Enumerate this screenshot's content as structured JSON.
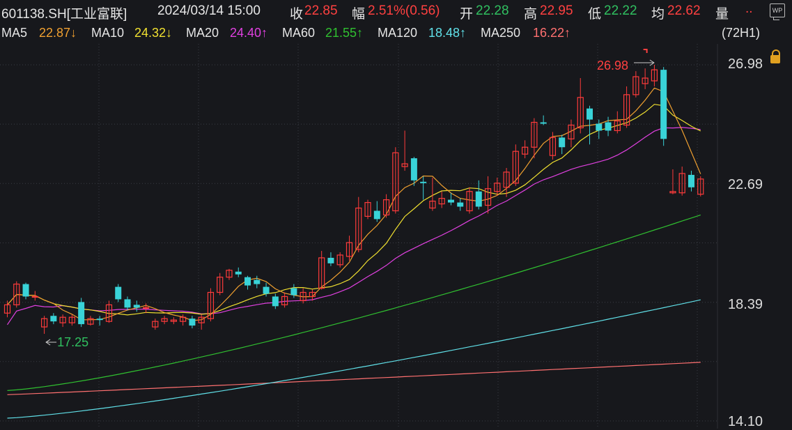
{
  "header": {
    "code": "601138.SH[工业富联]",
    "datetime": "2024/03/14 15:00",
    "close_label": "收",
    "close_value": "22.85",
    "change_label": "幅",
    "change_value": "2.51%(0.56)",
    "open_label": "开",
    "open_value": "22.28",
    "high_label": "高",
    "high_value": "22.95",
    "low_label": "低",
    "low_value": "22.22",
    "avg_label": "均",
    "avg_value": "22.62",
    "volume_label": "量",
    "more_label": "..",
    "wp_label": "WP"
  },
  "ma_bar": {
    "items": [
      {
        "label": "MA5",
        "value": "22.87↓",
        "color": "#f0a030"
      },
      {
        "label": "MA10",
        "value": "24.32↓",
        "color": "#f0e030"
      },
      {
        "label": "MA20",
        "value": "24.40↑",
        "color": "#e040e0"
      },
      {
        "label": "MA60",
        "value": "21.55↑",
        "color": "#30c030"
      },
      {
        "label": "MA120",
        "value": "18.48↑",
        "color": "#60e0e8"
      },
      {
        "label": "MA250",
        "value": "16.22↑",
        "color": "#ff7070"
      }
    ],
    "period": "(72H1)"
  },
  "chart_data": {
    "type": "candlestick",
    "y_ticks": [
      "26.98",
      "22.69",
      "18.39",
      "14.10"
    ],
    "ylim": [
      14.1,
      26.98
    ],
    "annotations": {
      "high": "26.98",
      "low": "17.25"
    },
    "colors": {
      "up": "#ff3b3b",
      "down": "#39d3d8",
      "ma5": "#f0a030",
      "ma10": "#f0e030",
      "ma20": "#e040e0",
      "ma60": "#30c030",
      "ma120": "#60e0e8",
      "ma250": "#ff7070"
    },
    "candles": [
      [
        18.0,
        18.3,
        18.45,
        17.85
      ],
      [
        18.3,
        19.05,
        19.15,
        18.2
      ],
      [
        19.05,
        18.6,
        19.1,
        18.5
      ],
      [
        18.6,
        18.6,
        18.8,
        18.45
      ],
      [
        17.5,
        17.8,
        17.9,
        17.25
      ],
      [
        17.9,
        17.7,
        18.0,
        17.6
      ],
      [
        17.65,
        17.85,
        17.95,
        17.5
      ],
      [
        17.65,
        17.85,
        17.95,
        17.55
      ],
      [
        18.4,
        17.6,
        18.55,
        17.5
      ],
      [
        17.6,
        17.8,
        17.9,
        17.55
      ],
      [
        17.8,
        17.75,
        17.9,
        17.55
      ],
      [
        17.7,
        18.3,
        18.45,
        17.65
      ],
      [
        18.95,
        18.5,
        19.05,
        18.4
      ],
      [
        18.5,
        18.2,
        18.6,
        18.1
      ],
      [
        18.3,
        18.2,
        18.45,
        18.05
      ],
      [
        18.2,
        18.2,
        18.35,
        18.0
      ],
      [
        17.5,
        17.7,
        17.8,
        17.4
      ],
      [
        17.7,
        17.8,
        17.9,
        17.6
      ],
      [
        17.7,
        17.75,
        17.85,
        17.6
      ],
      [
        17.7,
        17.85,
        17.95,
        17.55
      ],
      [
        17.8,
        17.55,
        17.9,
        17.45
      ],
      [
        17.65,
        17.85,
        17.95,
        17.4
      ],
      [
        17.8,
        18.75,
        18.9,
        17.7
      ],
      [
        18.75,
        19.3,
        19.45,
        18.65
      ],
      [
        19.3,
        19.55,
        19.6,
        19.2
      ],
      [
        19.5,
        19.4,
        19.65,
        19.3
      ],
      [
        19.3,
        19.0,
        19.35,
        18.85
      ],
      [
        19.2,
        19.05,
        19.35,
        18.9
      ],
      [
        18.95,
        18.7,
        19.1,
        18.6
      ],
      [
        18.6,
        18.25,
        18.7,
        18.15
      ],
      [
        18.3,
        18.6,
        18.75,
        18.2
      ],
      [
        18.9,
        18.65,
        19.05,
        18.55
      ],
      [
        18.45,
        18.75,
        18.9,
        18.35
      ],
      [
        18.6,
        18.75,
        18.85,
        18.45
      ],
      [
        18.9,
        20.0,
        20.25,
        18.85
      ],
      [
        20.0,
        19.8,
        20.2,
        19.7
      ],
      [
        19.75,
        20.1,
        20.2,
        19.65
      ],
      [
        20.05,
        20.55,
        20.8,
        19.9
      ],
      [
        20.3,
        21.8,
        22.2,
        20.2
      ],
      [
        21.5,
        22.0,
        22.1,
        21.4
      ],
      [
        21.7,
        21.4,
        22.05,
        21.3
      ],
      [
        21.55,
        22.1,
        22.3,
        21.45
      ],
      [
        21.7,
        23.8,
        24.0,
        21.6
      ],
      [
        23.3,
        23.4,
        24.6,
        23.15
      ],
      [
        23.6,
        22.8,
        23.65,
        22.6
      ],
      [
        22.75,
        22.7,
        22.95,
        22.1
      ],
      [
        21.8,
        22.05,
        22.9,
        21.7
      ],
      [
        21.95,
        22.15,
        22.4,
        21.8
      ],
      [
        22.1,
        22.0,
        22.35,
        21.9
      ],
      [
        22.0,
        21.85,
        22.15,
        21.7
      ],
      [
        21.7,
        22.4,
        22.55,
        21.6
      ],
      [
        22.4,
        21.85,
        22.8,
        21.75
      ],
      [
        21.9,
        22.5,
        22.95,
        21.6
      ],
      [
        22.4,
        22.7,
        22.9,
        22.25
      ],
      [
        22.55,
        23.1,
        23.25,
        22.2
      ],
      [
        22.7,
        23.85,
        24.1,
        22.6
      ],
      [
        23.75,
        24.0,
        24.25,
        23.6
      ],
      [
        24.0,
        24.9,
        25.05,
        23.6
      ],
      [
        24.9,
        24.85,
        25.15,
        24.8
      ],
      [
        23.7,
        24.35,
        24.55,
        23.55
      ],
      [
        24.35,
        24.0,
        24.45,
        23.75
      ],
      [
        24.3,
        24.8,
        25.0,
        24.0
      ],
      [
        24.7,
        25.8,
        26.5,
        24.5
      ],
      [
        25.4,
        25.0,
        25.5,
        24.1
      ],
      [
        24.85,
        24.6,
        25.0,
        24.3
      ],
      [
        24.9,
        24.6,
        25.1,
        24.4
      ],
      [
        24.6,
        24.95,
        25.3,
        24.5
      ],
      [
        24.8,
        25.9,
        26.2,
        24.7
      ],
      [
        25.9,
        26.55,
        26.75,
        25.8
      ],
      [
        26.3,
        26.5,
        26.85,
        26.1
      ],
      [
        26.4,
        26.8,
        26.98,
        26.2
      ],
      [
        26.8,
        24.3,
        26.9,
        24.05
      ],
      [
        22.35,
        22.4,
        23.2,
        22.3
      ],
      [
        22.35,
        23.05,
        23.3,
        22.25
      ],
      [
        23.0,
        22.55,
        23.15,
        22.4
      ],
      [
        22.3,
        22.85,
        22.95,
        22.22
      ]
    ]
  }
}
